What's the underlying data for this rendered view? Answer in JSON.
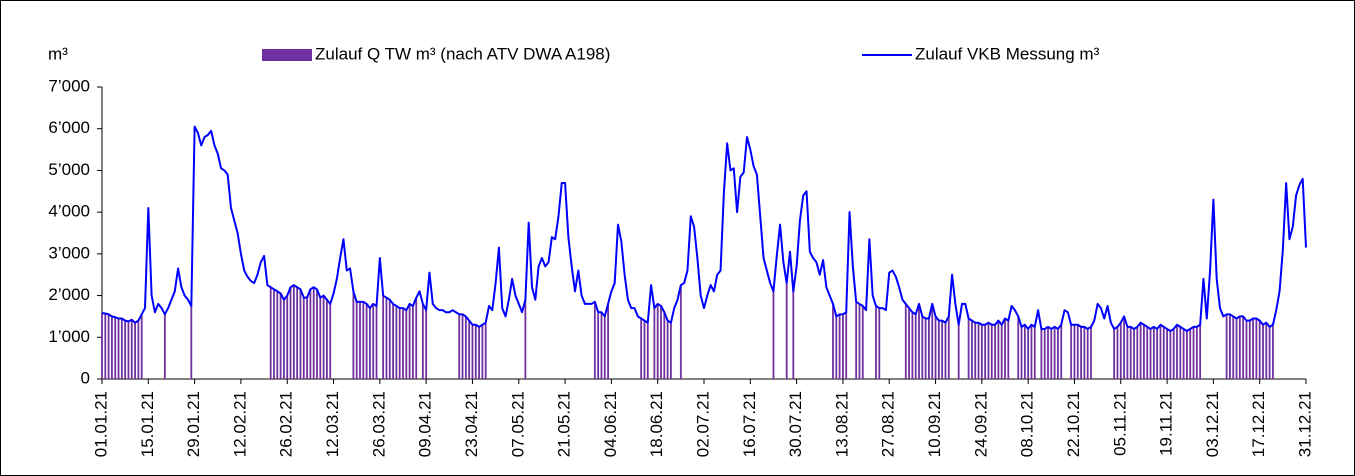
{
  "chart_data": {
    "type": "combo",
    "y_unit": "m³",
    "categories": [
      "01.01.21",
      null,
      null,
      null,
      null,
      null,
      null,
      null,
      null,
      null,
      null,
      null,
      null,
      null,
      "15.01.21",
      null,
      null,
      null,
      null,
      null,
      null,
      null,
      null,
      null,
      null,
      null,
      null,
      null,
      "29.01.21",
      null,
      null,
      null,
      null,
      null,
      null,
      null,
      null,
      null,
      null,
      null,
      null,
      null,
      "12.02.21",
      null,
      null,
      null,
      null,
      null,
      null,
      null,
      null,
      null,
      null,
      null,
      null,
      null,
      "26.02.21",
      null,
      null,
      null,
      null,
      null,
      null,
      null,
      null,
      null,
      null,
      null,
      null,
      null,
      "12.03.21",
      null,
      null,
      null,
      null,
      null,
      null,
      null,
      null,
      null,
      null,
      null,
      null,
      null,
      "26.03.21",
      null,
      null,
      null,
      null,
      null,
      null,
      null,
      null,
      null,
      null,
      null,
      null,
      null,
      "09.04.21",
      null,
      null,
      null,
      null,
      null,
      null,
      null,
      null,
      null,
      null,
      null,
      null,
      null,
      "23.04.21",
      null,
      null,
      null,
      null,
      null,
      null,
      null,
      null,
      null,
      null,
      null,
      null,
      null,
      "07.05.21",
      null,
      null,
      null,
      null,
      null,
      null,
      null,
      null,
      null,
      null,
      null,
      null,
      null,
      "21.05.21",
      null,
      null,
      null,
      null,
      null,
      null,
      null,
      null,
      null,
      null,
      null,
      null,
      null,
      "04.06.21",
      null,
      null,
      null,
      null,
      null,
      null,
      null,
      null,
      null,
      null,
      null,
      null,
      null,
      "18.06.21",
      null,
      null,
      null,
      null,
      null,
      null,
      null,
      null,
      null,
      null,
      null,
      null,
      null,
      "02.07.21",
      null,
      null,
      null,
      null,
      null,
      null,
      null,
      null,
      null,
      null,
      null,
      null,
      null,
      "16.07.21",
      null,
      null,
      null,
      null,
      null,
      null,
      null,
      null,
      null,
      null,
      null,
      null,
      null,
      "30.07.21",
      null,
      null,
      null,
      null,
      null,
      null,
      null,
      null,
      null,
      null,
      null,
      null,
      null,
      "13.08.21",
      null,
      null,
      null,
      null,
      null,
      null,
      null,
      null,
      null,
      null,
      null,
      null,
      null,
      "27.08.21",
      null,
      null,
      null,
      null,
      null,
      null,
      null,
      null,
      null,
      null,
      null,
      null,
      null,
      "10.09.21",
      null,
      null,
      null,
      null,
      null,
      null,
      null,
      null,
      null,
      null,
      null,
      null,
      null,
      "24.09.21",
      null,
      null,
      null,
      null,
      null,
      null,
      null,
      null,
      null,
      null,
      null,
      null,
      null,
      "08.10.21",
      null,
      null,
      null,
      null,
      null,
      null,
      null,
      null,
      null,
      null,
      null,
      null,
      null,
      "22.10.21",
      null,
      null,
      null,
      null,
      null,
      null,
      null,
      null,
      null,
      null,
      null,
      null,
      null,
      "05.11.21",
      null,
      null,
      null,
      null,
      null,
      null,
      null,
      null,
      null,
      null,
      null,
      null,
      null,
      "19.11.21",
      null,
      null,
      null,
      null,
      null,
      null,
      null,
      null,
      null,
      null,
      null,
      null,
      null,
      "03.12.21",
      null,
      null,
      null,
      null,
      null,
      null,
      null,
      null,
      null,
      null,
      null,
      null,
      null,
      "17.12.21",
      null,
      null,
      null,
      null,
      null,
      null,
      null,
      null,
      null,
      null,
      null,
      null,
      null,
      "31.12.21"
    ],
    "series": [
      {
        "name": "Zulauf Q TW m³ (nach ATV DWA A198)",
        "type": "bar",
        "color": "#7030a0",
        "values": [
          1580,
          1570,
          1550,
          1500,
          1480,
          1450,
          1450,
          1400,
          1380,
          1420,
          1350,
          1400,
          1550,
          null,
          null,
          null,
          null,
          null,
          null,
          1550,
          null,
          null,
          null,
          null,
          null,
          null,
          null,
          1750,
          null,
          null,
          null,
          null,
          null,
          null,
          null,
          null,
          null,
          null,
          null,
          null,
          null,
          null,
          null,
          null,
          null,
          null,
          null,
          null,
          null,
          null,
          null,
          2200,
          2150,
          2100,
          2050,
          1900,
          2000,
          2200,
          2250,
          2200,
          2150,
          1950,
          1950,
          2150,
          2200,
          2150,
          1950,
          2000,
          1900,
          1800,
          null,
          null,
          null,
          null,
          null,
          null,
          2100,
          1850,
          1850,
          1850,
          1800,
          1700,
          1800,
          1750,
          null,
          2000,
          1950,
          1900,
          1800,
          1750,
          1700,
          1700,
          1650,
          1800,
          1750,
          1950,
          null,
          1800,
          1650,
          null,
          null,
          null,
          null,
          null,
          null,
          null,
          null,
          null,
          1550,
          1550,
          1500,
          1400,
          1300,
          1300,
          1250,
          1300,
          1350,
          null,
          null,
          null,
          null,
          null,
          null,
          null,
          null,
          null,
          null,
          null,
          1900,
          null,
          null,
          null,
          null,
          null,
          null,
          null,
          null,
          null,
          null,
          null,
          null,
          null,
          null,
          null,
          null,
          null,
          null,
          null,
          null,
          1850,
          1600,
          1600,
          1500,
          1800,
          null,
          null,
          null,
          null,
          null,
          null,
          null,
          null,
          null,
          1450,
          1400,
          1350,
          null,
          1700,
          1800,
          1750,
          1600,
          1400,
          1350,
          null,
          null,
          2250,
          null,
          null,
          null,
          null,
          null,
          null,
          null,
          null,
          null,
          null,
          null,
          null,
          null,
          null,
          null,
          null,
          null,
          null,
          null,
          null,
          null,
          null,
          null,
          null,
          null,
          null,
          null,
          2100,
          null,
          null,
          null,
          2300,
          null,
          2100,
          null,
          null,
          null,
          null,
          null,
          null,
          null,
          null,
          null,
          null,
          null,
          1800,
          1500,
          1550,
          1550,
          1600,
          null,
          null,
          1850,
          1800,
          1750,
          null,
          null,
          null,
          1750,
          1700,
          null,
          null,
          null,
          null,
          null,
          null,
          null,
          1800,
          1700,
          1600,
          1550,
          1800,
          1500,
          1450,
          1450,
          1800,
          1500,
          1400,
          1400,
          1350,
          1500,
          null,
          null,
          1300,
          null,
          null,
          1450,
          1400,
          1350,
          1350,
          1300,
          1300,
          1350,
          1300,
          1300,
          1400,
          1300,
          1450,
          1400,
          null,
          null,
          1500,
          1250,
          1300,
          1200,
          1300,
          1250,
          null,
          1200,
          1200,
          1250,
          1200,
          1250,
          1200,
          1300,
          null,
          null,
          1300,
          1300,
          1300,
          1250,
          1250,
          1200,
          1250,
          null,
          null,
          null,
          null,
          null,
          null,
          1200,
          1250,
          1350,
          1500,
          1250,
          1250,
          1200,
          1250,
          1350,
          1300,
          1250,
          1200,
          1250,
          1200,
          1300,
          1250,
          1200,
          1150,
          1200,
          1300,
          1250,
          1200,
          1150,
          1200,
          1250,
          1250,
          1300,
          null,
          null,
          null,
          null,
          null,
          null,
          null,
          1550,
          1550,
          1500,
          1450,
          1500,
          1500,
          1400,
          1400,
          1450,
          1450,
          1400,
          1300,
          1350,
          1250,
          1300,
          null,
          null,
          null,
          null,
          null,
          null,
          null,
          null,
          null,
          null
        ]
      },
      {
        "name": "Zulauf VKB Messung m³",
        "type": "line",
        "color": "#0000ff",
        "values": [
          1580,
          1570,
          1550,
          1500,
          1480,
          1450,
          1450,
          1400,
          1380,
          1420,
          1350,
          1400,
          1550,
          1700,
          4100,
          2000,
          1600,
          1800,
          1700,
          1550,
          1700,
          1900,
          2100,
          2650,
          2200,
          2000,
          1900,
          1750,
          6050,
          5900,
          5600,
          5800,
          5850,
          5950,
          5600,
          5400,
          5050,
          5000,
          4900,
          4100,
          3800,
          3500,
          3000,
          2600,
          2450,
          2350,
          2300,
          2500,
          2800,
          2950,
          2250,
          2200,
          2150,
          2100,
          2050,
          1900,
          2000,
          2200,
          2250,
          2200,
          2150,
          1950,
          1950,
          2150,
          2200,
          2150,
          1950,
          2000,
          1900,
          1800,
          2050,
          2400,
          2900,
          3350,
          2600,
          2650,
          2100,
          1850,
          1850,
          1850,
          1800,
          1700,
          1800,
          1750,
          2900,
          2000,
          1950,
          1900,
          1800,
          1750,
          1700,
          1700,
          1650,
          1800,
          1750,
          1950,
          2100,
          1800,
          1650,
          2550,
          1800,
          1700,
          1650,
          1650,
          1600,
          1600,
          1650,
          1600,
          1550,
          1550,
          1500,
          1400,
          1300,
          1300,
          1250,
          1300,
          1350,
          1750,
          1650,
          2300,
          3150,
          1700,
          1500,
          1900,
          2400,
          2000,
          1800,
          1600,
          1900,
          3750,
          2200,
          1900,
          2700,
          2900,
          2700,
          2800,
          3400,
          3350,
          3900,
          4700,
          4700,
          3400,
          2700,
          2100,
          2600,
          2000,
          1800,
          1800,
          1800,
          1850,
          1600,
          1600,
          1500,
          1800,
          2100,
          2300,
          3700,
          3300,
          2500,
          1900,
          1700,
          1700,
          1500,
          1450,
          1400,
          1350,
          2250,
          1700,
          1800,
          1750,
          1600,
          1400,
          1350,
          1700,
          1900,
          2250,
          2300,
          2600,
          3900,
          3650,
          2900,
          2000,
          1700,
          2000,
          2250,
          2100,
          2500,
          2600,
          4450,
          5650,
          5000,
          5050,
          4000,
          4850,
          4950,
          5800,
          5500,
          5100,
          4900,
          3900,
          2900,
          2600,
          2300,
          2100,
          2950,
          3700,
          2800,
          2300,
          3050,
          2100,
          2700,
          3800,
          4400,
          4500,
          3050,
          2900,
          2800,
          2500,
          2850,
          2200,
          2000,
          1800,
          1500,
          1550,
          1550,
          1600,
          4000,
          2700,
          1850,
          1800,
          1750,
          1650,
          3350,
          2000,
          1750,
          1700,
          1700,
          1650,
          2550,
          2600,
          2450,
          2200,
          1900,
          1800,
          1700,
          1600,
          1550,
          1800,
          1500,
          1450,
          1450,
          1800,
          1500,
          1400,
          1400,
          1350,
          1500,
          2500,
          1800,
          1300,
          1800,
          1800,
          1450,
          1400,
          1350,
          1350,
          1300,
          1300,
          1350,
          1300,
          1300,
          1400,
          1300,
          1450,
          1400,
          1750,
          1650,
          1500,
          1250,
          1300,
          1200,
          1300,
          1250,
          1650,
          1200,
          1200,
          1250,
          1200,
          1250,
          1200,
          1300,
          1650,
          1600,
          1300,
          1300,
          1300,
          1250,
          1250,
          1200,
          1250,
          1400,
          1800,
          1700,
          1450,
          1750,
          1350,
          1200,
          1250,
          1350,
          1500,
          1250,
          1250,
          1200,
          1250,
          1350,
          1300,
          1250,
          1200,
          1250,
          1200,
          1300,
          1250,
          1200,
          1150,
          1200,
          1300,
          1250,
          1200,
          1150,
          1200,
          1250,
          1250,
          1300,
          2400,
          1450,
          2600,
          4300,
          2400,
          1700,
          1500,
          1550,
          1550,
          1500,
          1450,
          1500,
          1500,
          1400,
          1400,
          1450,
          1450,
          1400,
          1300,
          1350,
          1250,
          1300,
          1650,
          2100,
          3100,
          4700,
          3350,
          3650,
          4400,
          4650,
          4800,
          3150
        ]
      }
    ],
    "ylim": [
      0,
      7000
    ],
    "yticks": [
      0,
      {
        "value": 1000,
        "label": "1’000"
      },
      {
        "value": 2000,
        "label": "2’000"
      },
      {
        "value": 3000,
        "label": "3’000"
      },
      {
        "value": 4000,
        "label": "4’000"
      },
      {
        "value": 5000,
        "label": "5’000"
      },
      {
        "value": 6000,
        "label": "6’000"
      },
      {
        "value": 7000,
        "label": "7’000"
      }
    ],
    "grid": false,
    "legend": "top"
  }
}
